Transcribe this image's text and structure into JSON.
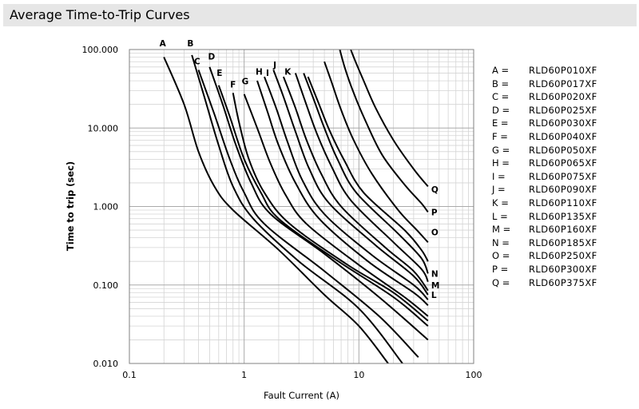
{
  "header": {
    "title": "Average Time-to-Trip Curves"
  },
  "chart_data": {
    "type": "line",
    "title": "",
    "xlabel": "Fault Current (A)",
    "ylabel": "Time to trip (sec)",
    "xscale": "log",
    "yscale": "log",
    "xlim": [
      0.1,
      100
    ],
    "ylim": [
      0.01,
      100
    ],
    "grid": true,
    "x_ticks": [
      {
        "value": 0.1,
        "label": "0.1"
      },
      {
        "value": 1,
        "label": "1"
      },
      {
        "value": 10,
        "label": "10"
      },
      {
        "value": 100,
        "label": "100"
      }
    ],
    "y_ticks": [
      {
        "value": 100,
        "label": "100.000"
      },
      {
        "value": 10,
        "label": "10.000"
      },
      {
        "value": 1,
        "label": "1.000"
      },
      {
        "value": 0.1,
        "label": "0.100"
      },
      {
        "value": 0.01,
        "label": "0.010"
      }
    ],
    "series": [
      {
        "name": "A",
        "points": [
          [
            0.2,
            80
          ],
          [
            0.3,
            20
          ],
          [
            0.4,
            5
          ],
          [
            0.55,
            1.8
          ],
          [
            0.8,
            0.9
          ],
          [
            2,
            0.28
          ],
          [
            5,
            0.075
          ],
          [
            10,
            0.03
          ],
          [
            18,
            0.01
          ]
        ],
        "label_at": [
          0.195,
          110
        ]
      },
      {
        "name": "B",
        "points": [
          [
            0.35,
            85
          ],
          [
            0.45,
            25
          ],
          [
            0.6,
            6
          ],
          [
            0.8,
            1.8
          ],
          [
            1.2,
            0.7
          ],
          [
            3,
            0.2
          ],
          [
            10,
            0.05
          ],
          [
            24,
            0.01
          ]
        ],
        "label_at": [
          0.34,
          110
        ]
      },
      {
        "name": "C",
        "points": [
          [
            0.4,
            55
          ],
          [
            0.55,
            15
          ],
          [
            0.75,
            4
          ],
          [
            1,
            1.5
          ],
          [
            1.5,
            0.6
          ],
          [
            5,
            0.15
          ],
          [
            15,
            0.04
          ],
          [
            33,
            0.012
          ]
        ],
        "label_at": [
          0.39,
          65
        ]
      },
      {
        "name": "D",
        "points": [
          [
            0.5,
            60
          ],
          [
            0.65,
            20
          ],
          [
            0.85,
            6
          ],
          [
            1.15,
            2
          ],
          [
            1.7,
            0.8
          ],
          [
            5,
            0.25
          ],
          [
            15,
            0.07
          ],
          [
            40,
            0.02
          ]
        ],
        "label_at": [
          0.52,
          75
        ]
      },
      {
        "name": "E",
        "points": [
          [
            0.6,
            35
          ],
          [
            0.75,
            14
          ],
          [
            1,
            4
          ],
          [
            1.4,
            1.5
          ],
          [
            2,
            0.7
          ],
          [
            6,
            0.22
          ],
          [
            20,
            0.07
          ],
          [
            40,
            0.03
          ]
        ],
        "label_at": [
          0.61,
          46
        ]
      },
      {
        "name": "F",
        "points": [
          [
            0.8,
            28
          ],
          [
            0.9,
            12
          ],
          [
            1.1,
            4
          ],
          [
            1.5,
            1.5
          ],
          [
            2.5,
            0.6
          ],
          [
            8,
            0.18
          ],
          [
            20,
            0.08
          ],
          [
            40,
            0.035
          ]
        ],
        "label_at": [
          0.8,
          33
        ]
      },
      {
        "name": "G",
        "points": [
          [
            1,
            27
          ],
          [
            1.3,
            10
          ],
          [
            1.7,
            3.5
          ],
          [
            2.3,
            1.4
          ],
          [
            3.5,
            0.6
          ],
          [
            10,
            0.18
          ],
          [
            25,
            0.07
          ],
          [
            40,
            0.04
          ]
        ],
        "label_at": [
          1.02,
          36
        ]
      },
      {
        "name": "H",
        "points": [
          [
            1.3,
            40
          ],
          [
            1.6,
            16
          ],
          [
            2,
            6
          ],
          [
            2.8,
            2
          ],
          [
            4.5,
            0.7
          ],
          [
            12,
            0.2
          ],
          [
            30,
            0.08
          ],
          [
            40,
            0.055
          ]
        ],
        "label_at": [
          1.35,
          48
        ]
      },
      {
        "name": "I",
        "points": [
          [
            1.5,
            45
          ],
          [
            1.9,
            18
          ],
          [
            2.4,
            6.5
          ],
          [
            3.2,
            2.2
          ],
          [
            5,
            0.8
          ],
          [
            13,
            0.24
          ],
          [
            30,
            0.1
          ],
          [
            40,
            0.065
          ]
        ],
        "label_at": [
          1.6,
          46
        ]
      },
      {
        "name": "J",
        "points": [
          [
            1.8,
            55
          ],
          [
            2.2,
            25
          ],
          [
            2.8,
            9
          ],
          [
            3.7,
            3
          ],
          [
            5.5,
            1.1
          ],
          [
            14,
            0.32
          ],
          [
            30,
            0.13
          ],
          [
            40,
            0.075
          ]
        ],
        "label_at": [
          1.85,
          58
        ]
      },
      {
        "name": "K",
        "points": [
          [
            2.2,
            45
          ],
          [
            2.8,
            18
          ],
          [
            3.5,
            7
          ],
          [
            4.7,
            2.6
          ],
          [
            7,
            1
          ],
          [
            17,
            0.3
          ],
          [
            30,
            0.15
          ],
          [
            40,
            0.085
          ]
        ],
        "label_at": [
          2.4,
          48
        ]
      },
      {
        "name": "L",
        "points": [
          [
            2.8,
            50
          ],
          [
            3.4,
            22
          ],
          [
            4.3,
            8.5
          ],
          [
            5.8,
            3.2
          ],
          [
            8.5,
            1.2
          ],
          [
            20,
            0.35
          ],
          [
            35,
            0.16
          ],
          [
            40,
            0.11
          ]
        ],
        "label_at": [
          40,
          0.075
        ]
      },
      {
        "name": "M",
        "points": [
          [
            3.3,
            50
          ],
          [
            4,
            24
          ],
          [
            5,
            10
          ],
          [
            6.5,
            4
          ],
          [
            9.5,
            1.5
          ],
          [
            22,
            0.45
          ],
          [
            35,
            0.22
          ],
          [
            40,
            0.14
          ]
        ],
        "label_at": [
          40,
          0.1
        ]
      },
      {
        "name": "N",
        "points": [
          [
            3.6,
            45
          ],
          [
            4.5,
            20
          ],
          [
            5.6,
            9
          ],
          [
            7.5,
            3.8
          ],
          [
            11,
            1.5
          ],
          [
            25,
            0.5
          ],
          [
            35,
            0.28
          ],
          [
            40,
            0.2
          ]
        ],
        "label_at": [
          40,
          0.14
        ]
      },
      {
        "name": "O",
        "points": [
          [
            5,
            70
          ],
          [
            5.8,
            38
          ],
          [
            7,
            17
          ],
          [
            9,
            7
          ],
          [
            13,
            2.6
          ],
          [
            22,
            0.9
          ],
          [
            32,
            0.5
          ],
          [
            40,
            0.35
          ]
        ],
        "label_at": [
          40,
          0.47
        ]
      },
      {
        "name": "P",
        "points": [
          [
            6.6,
            120
          ],
          [
            7.5,
            60
          ],
          [
            9,
            28
          ],
          [
            11.5,
            12
          ],
          [
            16,
            4.5
          ],
          [
            25,
            1.9
          ],
          [
            35,
            1.1
          ],
          [
            40,
            0.85
          ]
        ],
        "label_at": [
          40,
          0.85
        ]
      },
      {
        "name": "Q",
        "points": [
          [
            7.8,
            140
          ],
          [
            9,
            80
          ],
          [
            11,
            40
          ],
          [
            14,
            18
          ],
          [
            20,
            7
          ],
          [
            30,
            3
          ],
          [
            40,
            1.8
          ]
        ],
        "label_at": [
          40,
          1.65
        ]
      }
    ],
    "legend": {
      "position": "right",
      "entries": [
        {
          "letter": "A =",
          "part": "RLD60P010XF"
        },
        {
          "letter": "B =",
          "part": "RLD60P017XF"
        },
        {
          "letter": "C =",
          "part": "RLD60P020XF"
        },
        {
          "letter": "D =",
          "part": "RLD60P025XF"
        },
        {
          "letter": "E =",
          "part": "RLD60P030XF"
        },
        {
          "letter": "F =",
          "part": "RLD60P040XF"
        },
        {
          "letter": "G =",
          "part": "RLD60P050XF"
        },
        {
          "letter": "H =",
          "part": "RLD60P065XF"
        },
        {
          "letter": "I =",
          "part": "RLD60P075XF"
        },
        {
          "letter": "J =",
          "part": "RLD60P090XF"
        },
        {
          "letter": "K =",
          "part": "RLD60P110XF"
        },
        {
          "letter": "L =",
          "part": "RLD60P135XF"
        },
        {
          "letter": "M =",
          "part": "RLD60P160XF"
        },
        {
          "letter": "N =",
          "part": "RLD60P185XF"
        },
        {
          "letter": "O =",
          "part": "RLD60P250XF"
        },
        {
          "letter": "P =",
          "part": "RLD60P300XF"
        },
        {
          "letter": "Q =",
          "part": "RLD60P375XF"
        }
      ]
    },
    "colors": {
      "curve": "#000000",
      "grid_major": "#aaaaaa",
      "grid_minor": "#d4d4d4",
      "axis": "#808080"
    }
  }
}
